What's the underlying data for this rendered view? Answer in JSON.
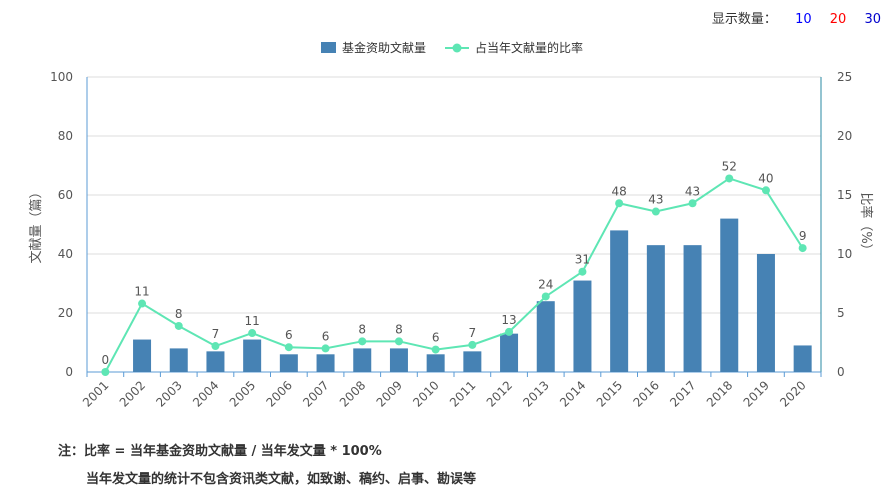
{
  "controls": {
    "label": "显示数量：",
    "options": [
      {
        "text": "10",
        "color": "#0000ff"
      },
      {
        "text": "20",
        "color": "#ff0000"
      },
      {
        "text": "30",
        "color": "#0000cc"
      }
    ]
  },
  "notes": {
    "line1": "注：比率 = 当年基金资助文献量 / 当年发文量 * 100%",
    "line2": "当年发文量的统计不包含资讯类文献，如致谢、稿约、启事、勘误等"
  },
  "colors": {
    "bar": "#4682b4",
    "line": "#5ee6b4",
    "axis_left": "#5b9bd5",
    "axis_right": "#2a8aa3",
    "grid": "#dcdcdc",
    "text": "#555555"
  },
  "chart_data": {
    "type": "bar",
    "categories": [
      "2001",
      "2002",
      "2003",
      "2004",
      "2005",
      "2006",
      "2007",
      "2008",
      "2009",
      "2010",
      "2011",
      "2012",
      "2013",
      "2014",
      "2015",
      "2016",
      "2017",
      "2018",
      "2019",
      "2020"
    ],
    "series": [
      {
        "name": "基金资助文献量",
        "type": "bar",
        "axis": "left",
        "values": [
          0,
          11,
          8,
          7,
          11,
          6,
          6,
          8,
          8,
          6,
          7,
          13,
          24,
          31,
          48,
          43,
          43,
          52,
          40,
          9
        ]
      },
      {
        "name": "占当年文献量的比率",
        "type": "line",
        "axis": "right",
        "values": [
          0,
          5.8,
          3.9,
          2.2,
          3.3,
          2.1,
          2.0,
          2.6,
          2.6,
          1.9,
          2.3,
          3.4,
          6.4,
          8.5,
          14.3,
          13.6,
          14.3,
          16.4,
          15.4,
          10.5
        ]
      }
    ],
    "ylabel": "文献量（篇）",
    "y2label": "比率（%）",
    "ylim": [
      0,
      100
    ],
    "y2lim": [
      0,
      25
    ],
    "yticks": [
      0,
      20,
      40,
      60,
      80,
      100
    ],
    "y2ticks": [
      0,
      5,
      10,
      15,
      20,
      25
    ],
    "grid": true,
    "legend_position": "top"
  }
}
